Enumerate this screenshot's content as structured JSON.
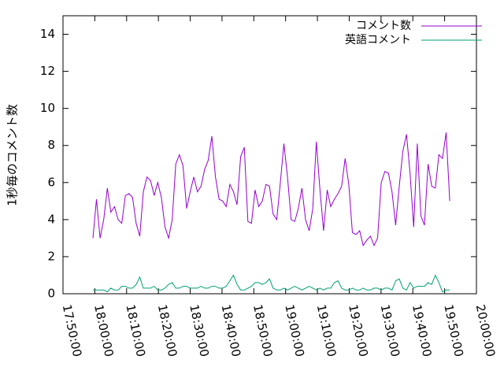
{
  "chart_data": {
    "type": "line",
    "y_label": "1秒毎のコメント数",
    "x": [
      "17:59:24",
      "18:00:32",
      "18:01:40",
      "18:02:48",
      "18:03:56",
      "18:05:04",
      "18:06:12",
      "18:07:20",
      "18:08:28",
      "18:09:36",
      "18:10:44",
      "18:11:52",
      "18:13:00",
      "18:14:08",
      "18:15:16",
      "18:16:24",
      "18:17:32",
      "18:18:40",
      "18:19:48",
      "18:20:56",
      "18:22:04",
      "18:23:12",
      "18:24:20",
      "18:25:28",
      "18:26:36",
      "18:27:44",
      "18:28:52",
      "18:30:00",
      "18:31:08",
      "18:32:16",
      "18:33:24",
      "18:34:32",
      "18:35:40",
      "18:36:48",
      "18:37:56",
      "18:39:04",
      "18:40:12",
      "18:41:20",
      "18:42:28",
      "18:43:36",
      "18:44:44",
      "18:45:52",
      "18:47:00",
      "18:48:08",
      "18:49:16",
      "18:50:24",
      "18:51:32",
      "18:52:40",
      "18:53:48",
      "18:54:56",
      "18:56:04",
      "18:57:12",
      "18:58:20",
      "18:59:28",
      "19:00:36",
      "19:01:44",
      "19:02:52",
      "19:04:00",
      "19:05:08",
      "19:06:16",
      "19:07:24",
      "19:08:32",
      "19:09:40",
      "19:10:48",
      "19:11:56",
      "19:13:04",
      "19:14:12",
      "19:15:20",
      "19:16:28",
      "19:17:36",
      "19:18:44",
      "19:19:52",
      "19:21:00",
      "19:22:08",
      "19:23:16",
      "19:24:24",
      "19:25:32",
      "19:26:40",
      "19:27:48",
      "19:28:56",
      "19:30:04",
      "19:31:12",
      "19:32:20",
      "19:33:28",
      "19:34:36",
      "19:35:44",
      "19:36:52",
      "19:38:00",
      "19:39:08",
      "19:40:16",
      "19:41:24",
      "19:42:32",
      "19:43:40",
      "19:44:48",
      "19:45:56",
      "19:47:04",
      "19:48:12",
      "19:49:20",
      "19:50:28",
      "19:51:36"
    ],
    "series": [
      {
        "name": "コメント数",
        "color": "#9400d3",
        "values": [
          3.0,
          5.1,
          3.0,
          4.0,
          5.7,
          4.4,
          4.7,
          4.0,
          3.8,
          5.3,
          5.4,
          5.2,
          3.8,
          3.1,
          5.5,
          6.3,
          6.1,
          5.3,
          6.0,
          5.2,
          3.6,
          3.0,
          4.0,
          7.0,
          7.5,
          6.9,
          4.6,
          5.5,
          6.3,
          5.5,
          5.8,
          6.7,
          7.2,
          8.5,
          6.3,
          5.1,
          5.0,
          4.7,
          5.9,
          5.5,
          4.8,
          7.4,
          7.9,
          3.9,
          3.8,
          5.6,
          4.7,
          5.0,
          5.9,
          5.8,
          4.3,
          4.0,
          6.0,
          8.1,
          6.3,
          4.0,
          3.9,
          4.6,
          5.7,
          4.0,
          3.4,
          4.6,
          8.2,
          5.6,
          3.4,
          5.6,
          4.7,
          5.1,
          5.4,
          5.8,
          7.3,
          5.9,
          3.3,
          3.2,
          3.4,
          2.6,
          2.9,
          3.1,
          2.6,
          3.0,
          6.0,
          6.6,
          6.5,
          5.5,
          3.7,
          5.8,
          7.7,
          8.6,
          6.5,
          3.6,
          8.1,
          4.2,
          3.7,
          7.0,
          5.8,
          5.7,
          7.5,
          7.3,
          8.7,
          5.0
        ]
      },
      {
        "name": "英語コメント",
        "color": "#009e73",
        "values": [
          0.2,
          0.2,
          0.2,
          0.2,
          0.1,
          0.3,
          0.2,
          0.2,
          0.4,
          0.4,
          0.3,
          0.3,
          0.5,
          0.9,
          0.3,
          0.3,
          0.3,
          0.4,
          0.2,
          0.2,
          0.3,
          0.5,
          0.6,
          0.3,
          0.3,
          0.4,
          0.4,
          0.3,
          0.3,
          0.3,
          0.4,
          0.3,
          0.3,
          0.4,
          0.4,
          0.3,
          0.3,
          0.4,
          0.7,
          1.0,
          0.5,
          0.2,
          0.2,
          0.3,
          0.4,
          0.6,
          0.6,
          0.5,
          0.6,
          0.8,
          0.3,
          0.2,
          0.2,
          0.3,
          0.2,
          0.3,
          0.4,
          0.3,
          0.2,
          0.3,
          0.4,
          0.3,
          0.2,
          0.3,
          0.2,
          0.3,
          0.3,
          0.6,
          0.7,
          0.3,
          0.2,
          0.2,
          0.3,
          0.2,
          0.2,
          0.3,
          0.2,
          0.2,
          0.3,
          0.3,
          0.2,
          0.3,
          0.3,
          0.2,
          0.7,
          0.8,
          0.3,
          0.2,
          0.6,
          0.3,
          0.4,
          0.4,
          0.4,
          0.6,
          0.5,
          1.0,
          0.6,
          0.1,
          0.2,
          0.2
        ]
      }
    ],
    "xlim": [
      "17:50:00",
      "20:00:00"
    ],
    "xticks": [
      "17:50:00",
      "18:00:00",
      "18:10:00",
      "18:20:00",
      "18:30:00",
      "18:40:00",
      "18:50:00",
      "19:00:00",
      "19:10:00",
      "19:20:00",
      "19:30:00",
      "19:40:00",
      "19:50:00",
      "20:00:00"
    ],
    "ylim": [
      0,
      15
    ],
    "yticks": [
      0,
      2,
      4,
      6,
      8,
      10,
      12,
      14
    ],
    "legend": "top right"
  }
}
